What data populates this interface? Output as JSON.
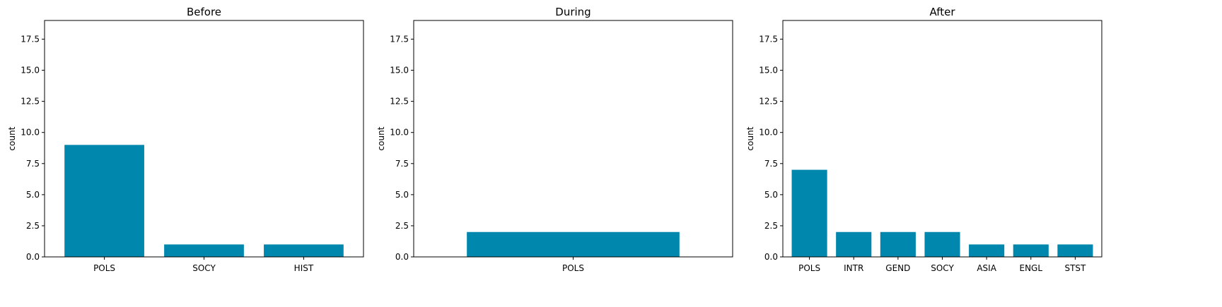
{
  "chart_data": [
    {
      "type": "bar",
      "title": "Before",
      "xlabel": "",
      "ylabel": "count",
      "categories": [
        "POLS",
        "SOCY",
        "HIST"
      ],
      "values": [
        9,
        1,
        1
      ],
      "ylim": [
        0,
        19
      ],
      "yticks": [
        "0.0",
        "2.5",
        "5.0",
        "7.5",
        "10.0",
        "12.5",
        "15.0",
        "17.5"
      ],
      "color": "#0087ae",
      "grid": false
    },
    {
      "type": "bar",
      "title": "During",
      "xlabel": "",
      "ylabel": "count",
      "categories": [
        "POLS"
      ],
      "values": [
        2
      ],
      "ylim": [
        0,
        19
      ],
      "yticks": [
        "0.0",
        "2.5",
        "5.0",
        "7.5",
        "10.0",
        "12.5",
        "15.0",
        "17.5"
      ],
      "color": "#0087ae",
      "grid": false
    },
    {
      "type": "bar",
      "title": "After",
      "xlabel": "",
      "ylabel": "count",
      "categories": [
        "POLS",
        "INTR",
        "GEND",
        "SOCY",
        "ASIA",
        "ENGL",
        "STST"
      ],
      "values": [
        7,
        2,
        2,
        2,
        1,
        1,
        1
      ],
      "ylim": [
        0,
        19
      ],
      "yticks": [
        "0.0",
        "2.5",
        "5.0",
        "7.5",
        "10.0",
        "12.5",
        "15.0",
        "17.5"
      ],
      "color": "#0087ae",
      "grid": false
    }
  ]
}
